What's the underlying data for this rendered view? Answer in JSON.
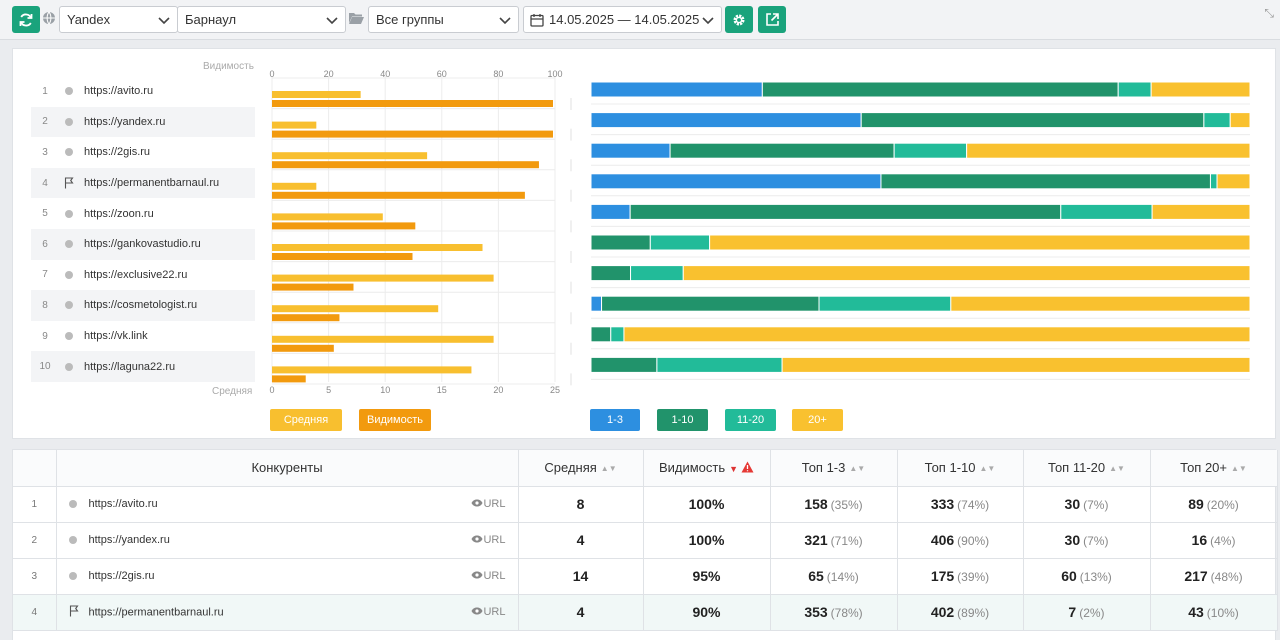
{
  "toolbar": {
    "search_engine": "Yandex",
    "region": "Барнаул",
    "group": "Все группы",
    "date_range": "14.05.2025 — 14.05.2025",
    "colors": {
      "accent": "#1aa37c"
    },
    "icons": [
      "refresh-icon",
      "globe-icon",
      "folder-icon",
      "calendar-icon",
      "gear-icon",
      "export-icon",
      "pin-icon"
    ]
  },
  "chart_panel": {
    "sites": [
      {
        "num": "1",
        "url": "https://avito.ru",
        "marker": "dot"
      },
      {
        "num": "2",
        "url": "https://yandex.ru",
        "marker": "dot"
      },
      {
        "num": "3",
        "url": "https://2gis.ru",
        "marker": "dot"
      },
      {
        "num": "4",
        "url": "https://permanentbarnaul.ru",
        "marker": "flag"
      },
      {
        "num": "5",
        "url": "https://zoon.ru",
        "marker": "dot"
      },
      {
        "num": "6",
        "url": "https://gankovastudio.ru",
        "marker": "dot"
      },
      {
        "num": "7",
        "url": "https://exclusive22.ru",
        "marker": "dot"
      },
      {
        "num": "8",
        "url": "https://cosmetologist.ru",
        "marker": "dot"
      },
      {
        "num": "9",
        "url": "https://vk.link",
        "marker": "dot"
      },
      {
        "num": "10",
        "url": "https://laguna22.ru",
        "marker": "dot"
      }
    ]
  },
  "chart_data": [
    {
      "type": "bar",
      "orientation": "horizontal",
      "categories": [
        "https://avito.ru",
        "https://yandex.ru",
        "https://2gis.ru",
        "https://permanentbarnaul.ru",
        "https://zoon.ru",
        "https://gankovastudio.ru",
        "https://exclusive22.ru",
        "https://cosmetologist.ru",
        "https://vk.link",
        "https://laguna22.ru"
      ],
      "top_axis": {
        "label": "Видимость",
        "ticks": [
          "0",
          "20",
          "40",
          "60",
          "80",
          "100"
        ],
        "range": [
          0,
          100
        ]
      },
      "bottom_axis": {
        "label": "Средняя",
        "ticks": [
          "0",
          "5",
          "10",
          "15",
          "20",
          "25"
        ],
        "range": [
          0,
          25
        ]
      },
      "series": [
        {
          "name": "Средняя",
          "axis": "bottom",
          "color": "#f8bf2f",
          "values": [
            8,
            4,
            14,
            4,
            10,
            19,
            20,
            15,
            20,
            18
          ]
        },
        {
          "name": "Видимость",
          "axis": "top",
          "color": "#f29a0e",
          "values": [
            100,
            100,
            95,
            90,
            51,
            50,
            29,
            24,
            22,
            12
          ]
        }
      ],
      "legend": "bottom-left",
      "grid": true
    },
    {
      "type": "bar",
      "orientation": "horizontal",
      "stacked": true,
      "normalized": true,
      "categories": [
        "https://avito.ru",
        "https://yandex.ru",
        "https://2gis.ru",
        "https://permanentbarnaul.ru",
        "https://zoon.ru",
        "https://gankovastudio.ru",
        "https://exclusive22.ru",
        "https://cosmetologist.ru",
        "https://vk.link",
        "https://laguna22.ru"
      ],
      "series": [
        {
          "name": "1-3",
          "color": "#2d8fe0",
          "values": [
            26,
            41,
            12,
            44,
            6,
            0,
            0,
            1.6,
            0,
            0
          ]
        },
        {
          "name": "1-10",
          "color": "#21936b",
          "values": [
            54,
            52,
            34,
            50,
            66,
            9,
            6,
            33,
            3,
            10
          ]
        },
        {
          "name": "11-20",
          "color": "#22bb99",
          "values": [
            5,
            4,
            11,
            1,
            14,
            9,
            8,
            20,
            2,
            19
          ]
        },
        {
          "name": "20+",
          "color": "#f9c12f",
          "values": [
            15,
            3,
            43,
            5,
            15,
            82,
            86,
            45.4,
            95,
            71
          ]
        }
      ],
      "legend": "bottom-left"
    }
  ],
  "table": {
    "headers": {
      "competitors": "Конкуренты",
      "avg": "Средняя",
      "visibility": "Видимость",
      "top3": "Топ 1-3",
      "top10": "Топ 1-10",
      "top20": "Топ 11-20",
      "top20plus": "Топ 20+"
    },
    "url_link": "URL",
    "rows": [
      {
        "num": "1",
        "url": "https://avito.ru",
        "marker": "dot",
        "avg": "8",
        "visibility": "100%",
        "top3": "158",
        "top3_pct": "(35%)",
        "top10": "333",
        "top10_pct": "(74%)",
        "top20": "30",
        "top20_pct": "(7%)",
        "top20plus": "89",
        "top20plus_pct": "(20%)"
      },
      {
        "num": "2",
        "url": "https://yandex.ru",
        "marker": "dot",
        "avg": "4",
        "visibility": "100%",
        "top3": "321",
        "top3_pct": "(71%)",
        "top10": "406",
        "top10_pct": "(90%)",
        "top20": "30",
        "top20_pct": "(7%)",
        "top20plus": "16",
        "top20plus_pct": "(4%)"
      },
      {
        "num": "3",
        "url": "https://2gis.ru",
        "marker": "dot",
        "avg": "14",
        "visibility": "95%",
        "top3": "65",
        "top3_pct": "(14%)",
        "top10": "175",
        "top10_pct": "(39%)",
        "top20": "60",
        "top20_pct": "(13%)",
        "top20plus": "217",
        "top20plus_pct": "(48%)"
      },
      {
        "num": "4",
        "url": "https://permanentbarnaul.ru",
        "marker": "flag",
        "avg": "4",
        "visibility": "90%",
        "top3": "353",
        "top3_pct": "(78%)",
        "top10": "402",
        "top10_pct": "(89%)",
        "top20": "7",
        "top20_pct": "(2%)",
        "top20plus": "43",
        "top20plus_pct": "(10%)"
      }
    ]
  }
}
